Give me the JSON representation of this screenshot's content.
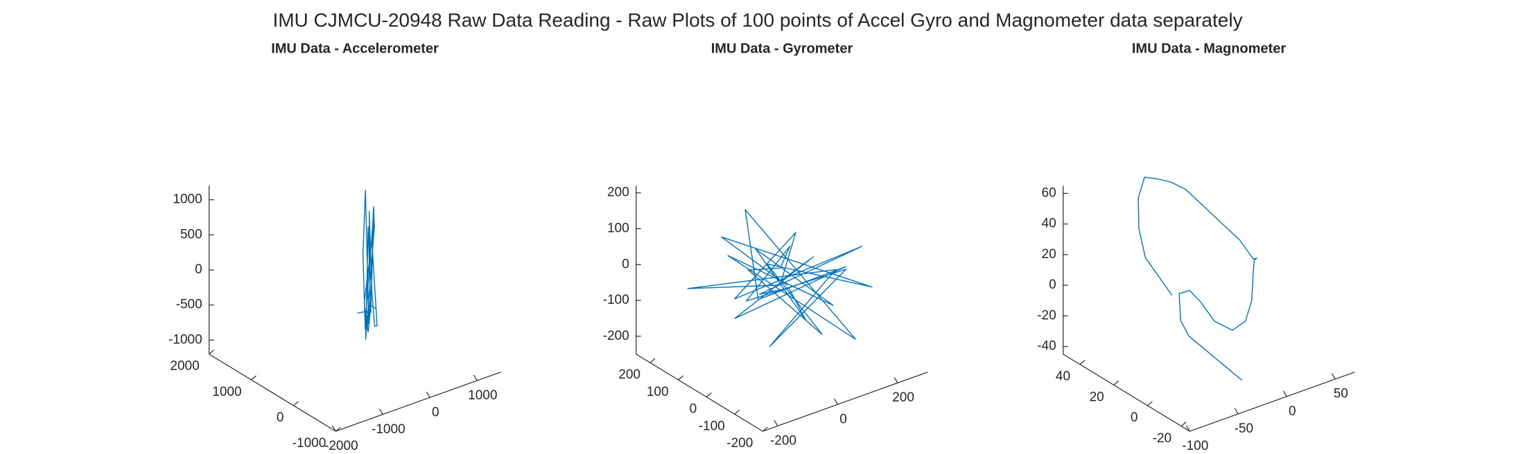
{
  "title": "IMU CJMCU-20948 Raw Data Reading - Raw Plots of 100 points of Accel Gyro and Magnometer data separately",
  "chart_data": [
    {
      "type": "line3d",
      "title": "IMU Data - Accelerometer",
      "xlim": [
        -2000,
        1500
      ],
      "ylim": [
        -1000,
        2000
      ],
      "zlim": [
        -1200,
        1200
      ],
      "xticks": [
        -2000,
        -1000,
        0,
        1000
      ],
      "yticks": [
        -1000,
        0,
        1000,
        2000
      ],
      "zticks": [
        -1000,
        -500,
        0,
        500,
        1000
      ],
      "series": [
        {
          "color": "#0072bd",
          "x": [
            -200,
            300,
            -100,
            500,
            200,
            -300,
            100,
            600,
            400,
            -400,
            0,
            300,
            -200,
            700,
            500,
            100,
            -100,
            400,
            200,
            -500,
            300,
            0,
            600,
            -300,
            200,
            100,
            -200,
            400,
            0,
            300
          ],
          "y": [
            500,
            800,
            300,
            1000,
            600,
            200,
            700,
            1200,
            900,
            100,
            400,
            800,
            300,
            1100,
            900,
            500,
            200,
            700,
            600,
            0,
            800,
            400,
            1000,
            200,
            700,
            500,
            300,
            900,
            400,
            600
          ],
          "z": [
            -500,
            -700,
            -400,
            600,
            -300,
            -600,
            200,
            800,
            -900,
            -300,
            -500,
            500,
            -800,
            300,
            700,
            -200,
            -600,
            -900,
            400,
            -100,
            -1000,
            -400,
            600,
            -500,
            -800,
            -300,
            -700,
            -900,
            -400,
            -600
          ]
        }
      ]
    },
    {
      "type": "line3d",
      "title": "IMU Data - Gyrometer",
      "xlim": [
        -250,
        300
      ],
      "ylim": [
        -200,
        250
      ],
      "zlim": [
        -250,
        220
      ],
      "xticks": [
        -200,
        0,
        200
      ],
      "yticks": [
        -200,
        -100,
        0,
        100,
        200
      ],
      "zticks": [
        -200,
        -100,
        0,
        100,
        200
      ],
      "series": [
        {
          "color": "#0072bd",
          "x": [
            0,
            50,
            -80,
            120,
            -40,
            20,
            200,
            -150,
            60,
            -20,
            100,
            -60,
            30,
            250,
            -100,
            10,
            80,
            -200,
            40,
            -30,
            150,
            -70,
            0,
            90,
            -120,
            60,
            -10,
            180,
            -50,
            20
          ],
          "y": [
            0,
            -60,
            80,
            -100,
            40,
            150,
            -50,
            30,
            -120,
            70,
            20,
            -90,
            110,
            -20,
            60,
            -40,
            90,
            120,
            -150,
            10,
            -70,
            50,
            -30,
            100,
            -10,
            -80,
            40,
            -130,
            160,
            0
          ],
          "z": [
            0,
            80,
            -120,
            50,
            -60,
            120,
            -200,
            100,
            -30,
            60,
            -150,
            40,
            -100,
            30,
            -50,
            150,
            -80,
            -20,
            90,
            -180,
            20,
            -60,
            110,
            -40,
            70,
            -130,
            30,
            -10,
            60,
            -20
          ]
        }
      ]
    },
    {
      "type": "line3d",
      "title": "IMU Data - Magnometer",
      "xlim": [
        -100,
        70
      ],
      "ylim": [
        -25,
        50
      ],
      "zlim": [
        -45,
        65
      ],
      "xticks": [
        -100,
        -50,
        0,
        50
      ],
      "yticks": [
        -20,
        0,
        20,
        40
      ],
      "zticks": [
        -40,
        -20,
        0,
        20,
        40,
        60
      ],
      "series": [
        {
          "color": "#0072bd",
          "x": [
            -40,
            -45,
            -50,
            -48,
            -40,
            -30,
            -20,
            -10,
            0,
            10,
            20,
            30,
            35,
            30,
            20,
            10,
            0,
            -10,
            -20,
            -30,
            -40,
            -45,
            -48,
            -50,
            -45,
            -40,
            -35,
            -30,
            -25,
            -20
          ],
          "y": [
            20,
            25,
            30,
            35,
            40,
            42,
            40,
            38,
            35,
            30,
            25,
            20,
            15,
            10,
            5,
            0,
            -5,
            -10,
            -12,
            -10,
            -5,
            0,
            5,
            10,
            12,
            10,
            5,
            0,
            -5,
            -10
          ],
          "z": [
            0,
            10,
            20,
            35,
            50,
            60,
            58,
            55,
            50,
            40,
            30,
            20,
            10,
            15,
            20,
            25,
            20,
            10,
            0,
            -5,
            0,
            10,
            15,
            10,
            -10,
            -20,
            -25,
            -30,
            -35,
            -40
          ]
        }
      ]
    }
  ]
}
